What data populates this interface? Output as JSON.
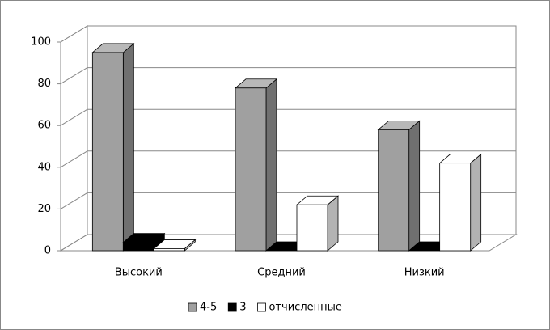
{
  "chart_data": {
    "type": "bar3d",
    "categories": [
      "Высокий",
      "Средний",
      "Низкий"
    ],
    "series": [
      {
        "name": "4-5",
        "color": "#a0a0a0",
        "values": [
          95,
          78,
          58
        ]
      },
      {
        "name": "3",
        "color": "#000000",
        "values": [
          4,
          0,
          0
        ]
      },
      {
        "name": "отчисленные",
        "color": "#ffffff",
        "values": [
          1,
          22,
          42
        ]
      }
    ],
    "ylim": [
      0,
      100
    ],
    "yticks": [
      0,
      20,
      40,
      60,
      80,
      100
    ],
    "grid": true,
    "legend": "bottom"
  }
}
